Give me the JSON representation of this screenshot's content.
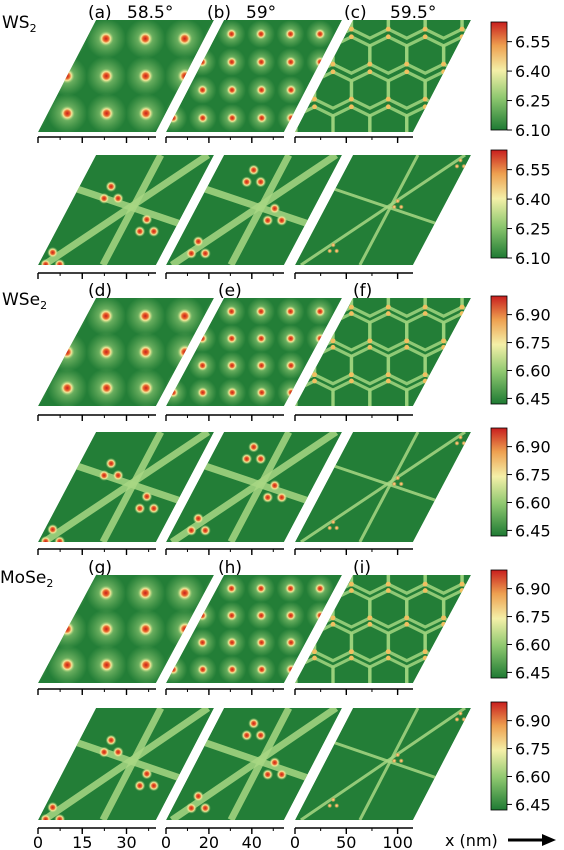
{
  "figure": {
    "materials": [
      {
        "label": "WS",
        "sub": "2"
      },
      {
        "label": "WSe",
        "sub": "2"
      },
      {
        "label": "MoSe",
        "sub": "2"
      }
    ],
    "panel_labels": [
      [
        "(a)",
        "(b)",
        "(c)"
      ],
      [
        "(d)",
        "(e)",
        "(f)"
      ],
      [
        "(g)",
        "(h)",
        "(i)"
      ]
    ],
    "angles": [
      "58.5°",
      "59°",
      "59.5°"
    ],
    "x_axis": {
      "label": "x (nm)",
      "columns": [
        {
          "ticks": [
            0,
            15,
            30
          ],
          "range": [
            0,
            40
          ]
        },
        {
          "ticks": [
            0,
            20,
            40
          ],
          "range": [
            0,
            55
          ]
        },
        {
          "ticks": [
            0,
            50,
            100
          ],
          "range": [
            0,
            115
          ]
        }
      ]
    },
    "colormap": {
      "colors": [
        "#1e7a33",
        "#8fc870",
        "#f4f0a8",
        "#eea050",
        "#c81e1e"
      ]
    }
  },
  "chart_data": {
    "type": "heatmap",
    "description_of_rows": "6 rows of moire maps: each material has two rows",
    "colorbars": [
      {
        "ticks": [
          "6.55",
          "6.40",
          "6.25",
          "6.10"
        ],
        "range": [
          6.1,
          6.65
        ]
      },
      {
        "ticks": [
          "6.55",
          "6.40",
          "6.25",
          "6.10"
        ],
        "range": [
          6.1,
          6.65
        ]
      },
      {
        "ticks": [
          "6.90",
          "6.75",
          "6.60",
          "6.45"
        ],
        "range": [
          6.42,
          7.0
        ]
      },
      {
        "ticks": [
          "6.90",
          "6.75",
          "6.60",
          "6.45"
        ],
        "range": [
          6.42,
          7.0
        ]
      },
      {
        "ticks": [
          "6.90",
          "6.75",
          "6.60",
          "6.45"
        ],
        "range": [
          6.42,
          7.0
        ]
      },
      {
        "ticks": [
          "6.90",
          "6.75",
          "6.60",
          "6.45"
        ],
        "range": [
          6.42,
          7.0
        ]
      }
    ]
  }
}
